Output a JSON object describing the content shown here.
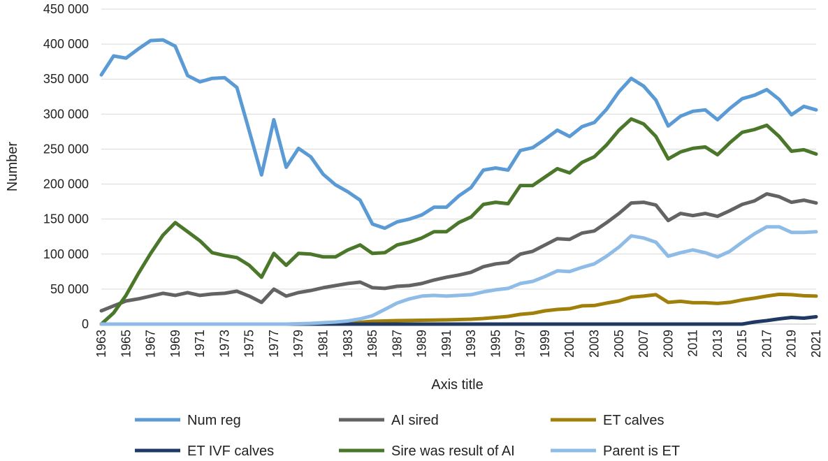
{
  "chart_data": {
    "type": "line",
    "title": "",
    "xlabel": "Axis title",
    "ylabel": "Number",
    "ylim": [
      0,
      450000
    ],
    "y_ticks": [
      0,
      50000,
      100000,
      150000,
      200000,
      250000,
      300000,
      350000,
      400000,
      450000
    ],
    "y_tick_labels": [
      "0",
      "50 000",
      "100 000",
      "150 000",
      "200 000",
      "250 000",
      "300 000",
      "350 000",
      "400 000",
      "450 000"
    ],
    "x": [
      1963,
      1964,
      1965,
      1966,
      1967,
      1968,
      1969,
      1970,
      1971,
      1972,
      1973,
      1974,
      1975,
      1976,
      1977,
      1978,
      1979,
      1980,
      1981,
      1982,
      1983,
      1984,
      1985,
      1986,
      1987,
      1988,
      1989,
      1990,
      1991,
      1992,
      1993,
      1994,
      1995,
      1996,
      1997,
      1998,
      1999,
      2000,
      2001,
      2002,
      2003,
      2004,
      2005,
      2006,
      2007,
      2008,
      2009,
      2010,
      2011,
      2012,
      2013,
      2014,
      2015,
      2016,
      2017,
      2018,
      2019,
      2020,
      2021
    ],
    "x_tick_labels": [
      "1963",
      "1965",
      "1967",
      "1969",
      "1971",
      "1973",
      "1975",
      "1977",
      "1979",
      "1981",
      "1983",
      "1985",
      "1987",
      "1989",
      "1991",
      "1993",
      "1995",
      "1997",
      "1999",
      "2001",
      "2003",
      "2005",
      "2007",
      "2009",
      "2011",
      "2013",
      "2015",
      "2017",
      "2019",
      "2021"
    ],
    "grid": "horizontal",
    "legend_position": "bottom",
    "series": [
      {
        "name": "Num reg",
        "color": "#5b9bd5",
        "values": [
          356000,
          383000,
          380000,
          393000,
          405000,
          406000,
          397000,
          355000,
          346000,
          351000,
          352000,
          338000,
          276000,
          213000,
          292000,
          224000,
          251000,
          239000,
          214000,
          199000,
          189000,
          177000,
          143000,
          137000,
          146000,
          150000,
          156000,
          167000,
          167000,
          183000,
          195000,
          220000,
          223000,
          220000,
          248000,
          252000,
          264000,
          277000,
          268000,
          282000,
          288000,
          307000,
          332000,
          351000,
          340000,
          320000,
          283000,
          297000,
          304000,
          306000,
          292000,
          308000,
          322000,
          327000,
          335000,
          321000,
          299000,
          311000,
          306000
        ]
      },
      {
        "name": "AI sired",
        "color": "#636363",
        "values": [
          19000,
          26000,
          33000,
          36000,
          40000,
          44000,
          41000,
          45000,
          41000,
          43000,
          44000,
          47000,
          40000,
          31000,
          50000,
          40000,
          45000,
          48000,
          52000,
          55000,
          58000,
          60000,
          52000,
          51000,
          54000,
          55000,
          58000,
          63000,
          67000,
          70000,
          74000,
          82000,
          86000,
          88000,
          100000,
          104000,
          113000,
          122000,
          121000,
          130000,
          133000,
          145000,
          158000,
          173000,
          174000,
          170000,
          148000,
          158000,
          155000,
          158000,
          154000,
          162000,
          171000,
          176000,
          186000,
          182000,
          174000,
          177000,
          173000
        ]
      },
      {
        "name": "ET calves",
        "color": "#a0800a",
        "values": [
          0,
          0,
          0,
          0,
          0,
          0,
          0,
          0,
          0,
          0,
          0,
          0,
          0,
          0,
          0,
          0,
          0,
          0,
          0,
          0,
          1000,
          2500,
          4000,
          4500,
          5000,
          5200,
          5500,
          5800,
          6000,
          6500,
          7000,
          8000,
          9500,
          11000,
          14000,
          15500,
          19000,
          21000,
          22000,
          26000,
          26500,
          30000,
          33000,
          38500,
          40000,
          42000,
          31000,
          32500,
          30500,
          30500,
          29500,
          31000,
          34500,
          37000,
          40000,
          42500,
          42000,
          40500,
          40000
        ]
      },
      {
        "name": "ET IVF calves",
        "color": "#203864",
        "values": [
          0,
          0,
          0,
          0,
          0,
          0,
          0,
          0,
          0,
          0,
          0,
          0,
          0,
          0,
          0,
          0,
          0,
          0,
          0,
          0,
          0,
          0,
          0,
          0,
          0,
          0,
          0,
          0,
          0,
          0,
          0,
          0,
          0,
          0,
          0,
          0,
          0,
          0,
          0,
          0,
          0,
          0,
          0,
          0,
          0,
          0,
          0,
          0,
          0,
          0,
          0,
          0,
          0,
          3000,
          5000,
          7500,
          9500,
          8500,
          10500
        ]
      },
      {
        "name": "Sire was result of AI",
        "color": "#4a7729",
        "values": [
          0,
          16000,
          41000,
          72000,
          101000,
          127000,
          145000,
          132000,
          119000,
          102000,
          98000,
          95000,
          84000,
          67000,
          101000,
          84000,
          101000,
          100000,
          96000,
          96000,
          106000,
          113000,
          101000,
          102000,
          113000,
          117000,
          123000,
          132000,
          132000,
          145000,
          153000,
          171000,
          174000,
          172000,
          198000,
          198000,
          210000,
          222000,
          216000,
          231000,
          239000,
          256000,
          277000,
          293000,
          286000,
          268000,
          236000,
          246000,
          251000,
          253000,
          242000,
          259000,
          274000,
          278000,
          284000,
          268000,
          247000,
          249000,
          243000
        ]
      },
      {
        "name": "Parent is ET",
        "color": "#8fbce6",
        "values": [
          0,
          0,
          0,
          0,
          0,
          0,
          0,
          0,
          0,
          0,
          0,
          0,
          0,
          0,
          0,
          0,
          500,
          1000,
          2000,
          3000,
          4500,
          7500,
          12000,
          21000,
          30000,
          36000,
          40000,
          41000,
          40000,
          41000,
          42000,
          46000,
          49000,
          51000,
          58000,
          61000,
          68000,
          76000,
          75000,
          81000,
          86000,
          97000,
          110000,
          126000,
          123000,
          117000,
          97000,
          102000,
          106000,
          102000,
          96000,
          104000,
          117000,
          129000,
          139000,
          139000,
          131000,
          131000,
          132000
        ]
      }
    ]
  }
}
